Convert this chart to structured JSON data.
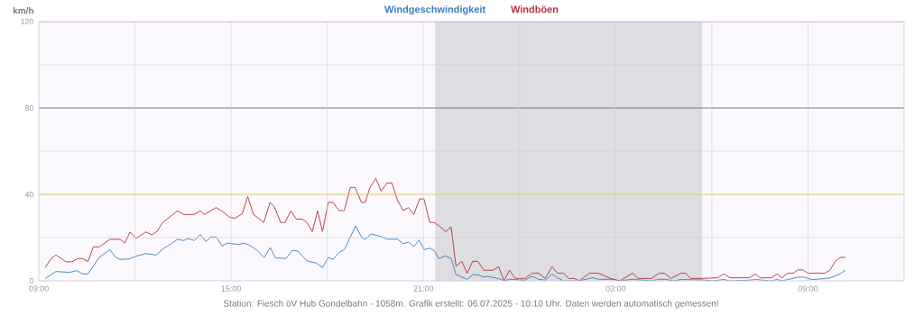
{
  "chart_data": {
    "type": "line",
    "ylabel": "km/h",
    "xlim": [
      "2025-07-05T09:00",
      "2025-07-06T12:00"
    ],
    "ylim": [
      0,
      120
    ],
    "xticks": [
      {
        "value": "2025-07-05T09:00",
        "label": "09:00"
      },
      {
        "value": "2025-07-05T12:00",
        "label": null
      },
      {
        "value": "2025-07-05T15:00",
        "label": "15:00"
      },
      {
        "value": "2025-07-05T18:00",
        "label": null
      },
      {
        "value": "2025-07-05T21:00",
        "label": "21:00"
      },
      {
        "value": "2025-07-06T00:00",
        "label": null
      },
      {
        "value": "2025-07-06T03:00",
        "label": "03:00"
      },
      {
        "value": "2025-07-06T06:00",
        "label": null
      },
      {
        "value": "2025-07-06T09:00",
        "label": "09:00"
      },
      {
        "value": "2025-07-06T12:00",
        "label": null
      }
    ],
    "yticks": [
      0,
      {
        "value": 20,
        "label": null
      },
      40,
      {
        "value": 60,
        "label": null
      },
      80,
      {
        "value": 100,
        "label": null
      },
      120
    ],
    "grid": true,
    "series": [
      {
        "name": "Windgeschwindigkeit",
        "color": "#3a7dc0",
        "x": [
          "2025-07-05T09:12",
          "2025-07-05T09:32",
          "2025-07-05T09:57",
          "2025-07-05T10:11",
          "2025-07-05T10:22",
          "2025-07-05T10:32",
          "2025-07-05T10:53",
          "2025-07-05T11:13",
          "2025-07-05T11:24",
          "2025-07-05T11:32",
          "2025-07-05T11:49",
          "2025-07-05T12:01",
          "2025-07-05T12:20",
          "2025-07-05T12:40",
          "2025-07-05T12:52",
          "2025-07-05T13:20",
          "2025-07-05T13:31",
          "2025-07-05T13:40",
          "2025-07-05T13:51",
          "2025-07-05T14:02",
          "2025-07-05T14:13",
          "2025-07-05T14:22",
          "2025-07-05T14:32",
          "2025-07-05T14:43",
          "2025-07-05T14:53",
          "2025-07-05T15:07",
          "2025-07-05T15:15",
          "2025-07-05T15:23",
          "2025-07-05T15:35",
          "2025-07-05T15:49",
          "2025-07-05T16:02",
          "2025-07-05T16:13",
          "2025-07-05T16:23",
          "2025-07-05T16:43",
          "2025-07-05T16:54",
          "2025-07-05T17:05",
          "2025-07-05T17:22",
          "2025-07-05T17:39",
          "2025-07-05T17:51",
          "2025-07-05T18:02",
          "2025-07-05T18:11",
          "2025-07-05T18:23",
          "2025-07-05T18:32",
          "2025-07-05T18:42",
          "2025-07-05T18:53",
          "2025-07-05T19:05",
          "2025-07-05T19:11",
          "2025-07-05T19:22",
          "2025-07-05T19:43",
          "2025-07-05T19:53",
          "2025-07-05T20:11",
          "2025-07-05T20:22",
          "2025-07-05T20:32",
          "2025-07-05T20:42",
          "2025-07-05T20:52",
          "2025-07-05T21:01",
          "2025-07-05T21:12",
          "2025-07-05T21:20",
          "2025-07-05T21:29",
          "2025-07-05T21:41",
          "2025-07-05T21:52",
          "2025-07-05T22:01",
          "2025-07-05T22:12",
          "2025-07-05T22:22",
          "2025-07-05T22:32",
          "2025-07-05T22:42",
          "2025-07-05T22:53",
          "2025-07-05T23:00",
          "2025-07-05T23:21",
          "2025-07-05T23:31",
          "2025-07-05T23:41",
          "2025-07-06T00:10",
          "2025-07-06T00:23",
          "2025-07-06T00:36",
          "2025-07-06T00:48",
          "2025-07-06T01:01",
          "2025-07-06T01:11",
          "2025-07-06T01:22",
          "2025-07-06T01:52",
          "2025-07-06T02:17",
          "2025-07-06T02:28",
          "2025-07-06T02:50",
          "2025-07-06T03:08",
          "2025-07-06T03:31",
          "2025-07-06T04:07",
          "2025-07-06T04:21",
          "2025-07-06T04:32",
          "2025-07-06T04:49",
          "2025-07-06T05:02",
          "2025-07-06T05:44",
          "2025-07-06T06:02",
          "2025-07-06T06:22",
          "2025-07-06T06:34",
          "2025-07-06T07:10",
          "2025-07-06T07:22",
          "2025-07-06T07:50",
          "2025-07-06T08:02",
          "2025-07-06T08:11",
          "2025-07-06T08:23",
          "2025-07-06T08:41",
          "2025-07-06T08:52",
          "2025-07-06T09:08",
          "2025-07-06T09:31",
          "2025-07-06T09:42",
          "2025-07-06T09:53",
          "2025-07-06T10:02",
          "2025-07-06T10:10"
        ],
        "values": [
          1.1,
          4.3,
          3.9,
          4.7,
          3.2,
          3.2,
          10.8,
          14.4,
          10.8,
          9.9,
          10.1,
          11.3,
          12.6,
          11.9,
          14.7,
          19.2,
          18.6,
          19.6,
          18.6,
          21.4,
          18.2,
          20.3,
          20.3,
          16.1,
          17.5,
          17.0,
          16.7,
          17.5,
          16.4,
          14.0,
          10.8,
          15.4,
          10.6,
          10.3,
          14.0,
          13.8,
          9.2,
          8.2,
          6.1,
          10.8,
          9.9,
          13.3,
          14.4,
          19.6,
          25.4,
          19.9,
          19.2,
          21.7,
          20.3,
          19.2,
          19.3,
          17.2,
          17.9,
          15.8,
          18.9,
          14.4,
          15.1,
          14.0,
          10.3,
          11.5,
          10.3,
          2.9,
          1.7,
          0.7,
          2.8,
          2.8,
          1.7,
          2.1,
          1.0,
          0,
          0.7,
          0.3,
          2.1,
          0.7,
          0.3,
          3.1,
          1.4,
          0,
          0,
          1.4,
          0.7,
          0.7,
          0,
          0.7,
          0,
          0.7,
          0.7,
          0,
          0.6,
          0.4,
          0,
          0.6,
          0,
          0.3,
          0.6,
          0,
          0.6,
          0,
          0.6,
          1.7,
          1.7,
          0.6,
          1.0,
          1.4,
          2.5,
          3.5,
          4.9
        ]
      },
      {
        "name": "Windböen",
        "color": "#b5303a",
        "x": [
          "2025-07-05T09:12",
          "2025-07-05T09:23",
          "2025-07-05T09:32",
          "2025-07-05T09:51",
          "2025-07-05T10:02",
          "2025-07-05T10:13",
          "2025-07-05T10:22",
          "2025-07-05T10:32",
          "2025-07-05T10:42",
          "2025-07-05T10:53",
          "2025-07-05T11:13",
          "2025-07-05T11:32",
          "2025-07-05T11:41",
          "2025-07-05T11:51",
          "2025-07-05T12:02",
          "2025-07-05T12:20",
          "2025-07-05T12:32",
          "2025-07-05T12:41",
          "2025-07-05T12:52",
          "2025-07-05T13:20",
          "2025-07-05T13:31",
          "2025-07-05T13:51",
          "2025-07-05T14:02",
          "2025-07-05T14:10",
          "2025-07-05T14:32",
          "2025-07-05T14:44",
          "2025-07-05T14:58",
          "2025-07-05T15:07",
          "2025-07-05T15:21",
          "2025-07-05T15:31",
          "2025-07-05T15:42",
          "2025-07-05T16:01",
          "2025-07-05T16:13",
          "2025-07-05T16:21",
          "2025-07-05T16:33",
          "2025-07-05T16:41",
          "2025-07-05T16:52",
          "2025-07-05T17:02",
          "2025-07-05T17:13",
          "2025-07-05T17:22",
          "2025-07-05T17:32",
          "2025-07-05T17:42",
          "2025-07-05T17:51",
          "2025-07-05T18:02",
          "2025-07-05T18:11",
          "2025-07-05T18:22",
          "2025-07-05T18:32",
          "2025-07-05T18:43",
          "2025-07-05T18:52",
          "2025-07-05T19:04",
          "2025-07-05T19:11",
          "2025-07-05T19:20",
          "2025-07-05T19:31",
          "2025-07-05T19:41",
          "2025-07-05T19:52",
          "2025-07-05T20:01",
          "2025-07-05T20:11",
          "2025-07-05T20:22",
          "2025-07-05T20:32",
          "2025-07-05T20:42",
          "2025-07-05T20:53",
          "2025-07-05T21:01",
          "2025-07-05T21:12",
          "2025-07-05T21:20",
          "2025-07-05T21:31",
          "2025-07-05T21:42",
          "2025-07-05T21:52",
          "2025-07-05T22:01",
          "2025-07-05T22:12",
          "2025-07-05T22:22",
          "2025-07-05T22:32",
          "2025-07-05T22:42",
          "2025-07-05T22:53",
          "2025-07-05T23:10",
          "2025-07-05T23:21",
          "2025-07-05T23:31",
          "2025-07-05T23:41",
          "2025-07-05T23:52",
          "2025-07-06T00:10",
          "2025-07-06T00:23",
          "2025-07-06T00:36",
          "2025-07-06T00:48",
          "2025-07-06T01:01",
          "2025-07-06T01:11",
          "2025-07-06T01:22",
          "2025-07-06T01:32",
          "2025-07-06T01:42",
          "2025-07-06T01:52",
          "2025-07-06T02:11",
          "2025-07-06T02:28",
          "2025-07-06T02:50",
          "2025-07-06T03:08",
          "2025-07-06T03:31",
          "2025-07-06T03:42",
          "2025-07-06T04:07",
          "2025-07-06T04:21",
          "2025-07-06T04:32",
          "2025-07-06T04:43",
          "2025-07-06T05:02",
          "2025-07-06T05:11",
          "2025-07-06T05:20",
          "2025-07-06T05:44",
          "2025-07-06T06:11",
          "2025-07-06T06:22",
          "2025-07-06T06:34",
          "2025-07-06T07:10",
          "2025-07-06T07:22",
          "2025-07-06T07:30",
          "2025-07-06T07:52",
          "2025-07-06T08:02",
          "2025-07-06T08:11",
          "2025-07-06T08:22",
          "2025-07-06T08:32",
          "2025-07-06T08:41",
          "2025-07-06T08:50",
          "2025-07-06T09:00",
          "2025-07-06T09:31",
          "2025-07-06T09:41",
          "2025-07-06T09:51",
          "2025-07-06T10:00",
          "2025-07-06T10:10"
        ],
        "values": [
          6.1,
          10.3,
          12.0,
          8.8,
          8.8,
          10.3,
          10.3,
          8.9,
          15.7,
          15.7,
          19.2,
          19.2,
          17.5,
          22.6,
          19.6,
          22.6,
          21.3,
          22.8,
          27.0,
          32.4,
          30.7,
          30.7,
          32.4,
          30.7,
          33.9,
          32.1,
          29.3,
          28.9,
          31.1,
          39.0,
          30.7,
          27.0,
          36.3,
          34.2,
          27.0,
          27.0,
          32.4,
          28.6,
          28.6,
          27.0,
          22.8,
          32.4,
          22.8,
          36.3,
          36.3,
          32.5,
          32.5,
          43.2,
          43.2,
          36.3,
          36.3,
          43.2,
          47.4,
          41.4,
          45.3,
          45.3,
          37.6,
          32.5,
          33.9,
          30.7,
          37.9,
          37.9,
          27.0,
          27.0,
          25.1,
          22.8,
          24.9,
          6.7,
          9.0,
          3.5,
          9.0,
          9.0,
          4.9,
          4.9,
          6.5,
          0,
          4.9,
          1.1,
          1.1,
          3.5,
          3.5,
          1.1,
          6.5,
          3.5,
          3.5,
          1.1,
          1.1,
          0,
          3.5,
          3.5,
          1.1,
          0,
          3.5,
          1.1,
          1.1,
          3.5,
          3.5,
          1.1,
          3.5,
          3.5,
          1.1,
          1.1,
          1.4,
          3.2,
          1.4,
          1.4,
          3.2,
          1.4,
          1.4,
          3.2,
          1.4,
          3.5,
          3.5,
          5.1,
          5.1,
          3.5,
          3.5,
          4.9,
          9.0,
          10.8,
          10.8
        ]
      }
    ],
    "ref_lines": [
      {
        "axis": "y",
        "value": 40,
        "color": "#f0e000"
      },
      {
        "axis": "y",
        "value": 80,
        "color": "#5a3a5a"
      },
      {
        "axis": "y",
        "value": 120,
        "color": "#e060e0"
      }
    ],
    "bands": [
      {
        "axis": "x",
        "from": "2025-07-05T21:22",
        "to": "2025-07-06T05:42",
        "color": "#dddde2"
      }
    ],
    "annotations": [
      "Station: Fiesch öV Hub Gondelbahn - 1058m. Grafik erstellt: 06.07.2025 - 10:10 Uhr. Daten werden automatisch gemessen!"
    ]
  }
}
